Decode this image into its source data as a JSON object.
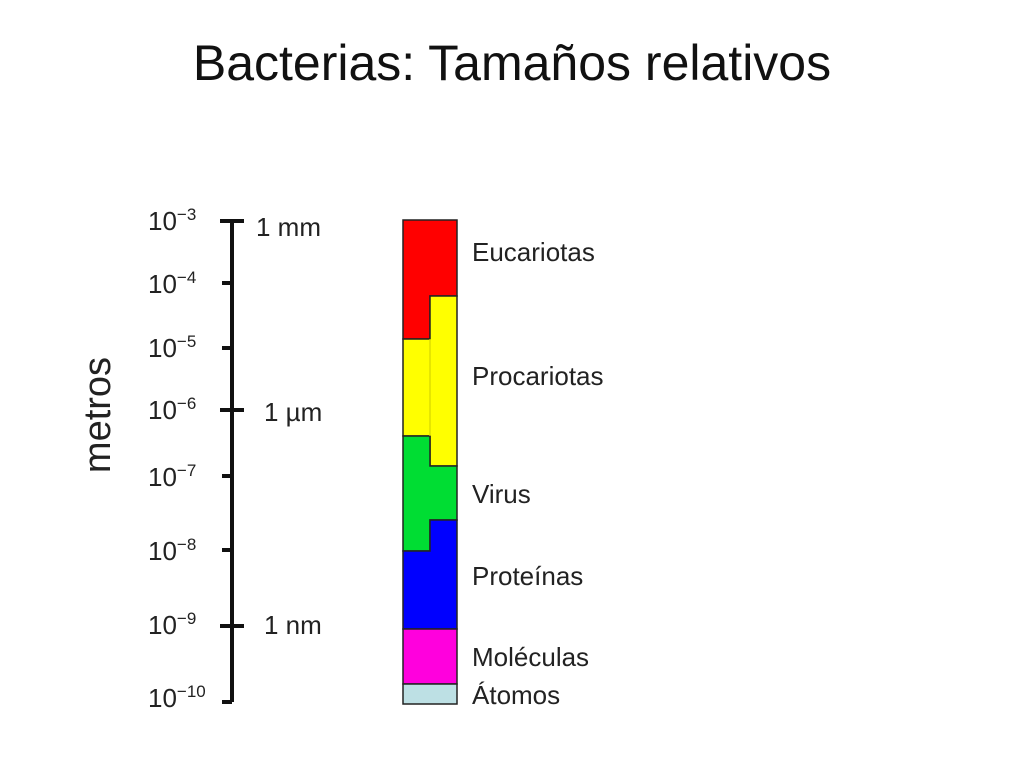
{
  "title": "Bacterias: Tamaños relativos",
  "axis": {
    "label": "metros",
    "ticks": [
      {
        "base": "10",
        "exp": "−3"
      },
      {
        "base": "10",
        "exp": "−4"
      },
      {
        "base": "10",
        "exp": "−5"
      },
      {
        "base": "10",
        "exp": "−6"
      },
      {
        "base": "10",
        "exp": "−7"
      },
      {
        "base": "10",
        "exp": "−8"
      },
      {
        "base": "10",
        "exp": "−9"
      },
      {
        "base": "10",
        "exp": "−10"
      }
    ],
    "unit_labels": [
      "1 mm",
      "1 µm",
      "1 nm"
    ]
  },
  "categories": [
    {
      "label": "Eucariotas",
      "color": "#ff0000"
    },
    {
      "label": "Procariotas",
      "color": "#ffff00"
    },
    {
      "label": "Virus",
      "color": "#00dd33"
    },
    {
      "label": "Proteínas",
      "color": "#0000ff"
    },
    {
      "label": "Moléculas",
      "color": "#ff00dd"
    },
    {
      "label": "Átomos",
      "color": "#bde0e4"
    }
  ]
}
